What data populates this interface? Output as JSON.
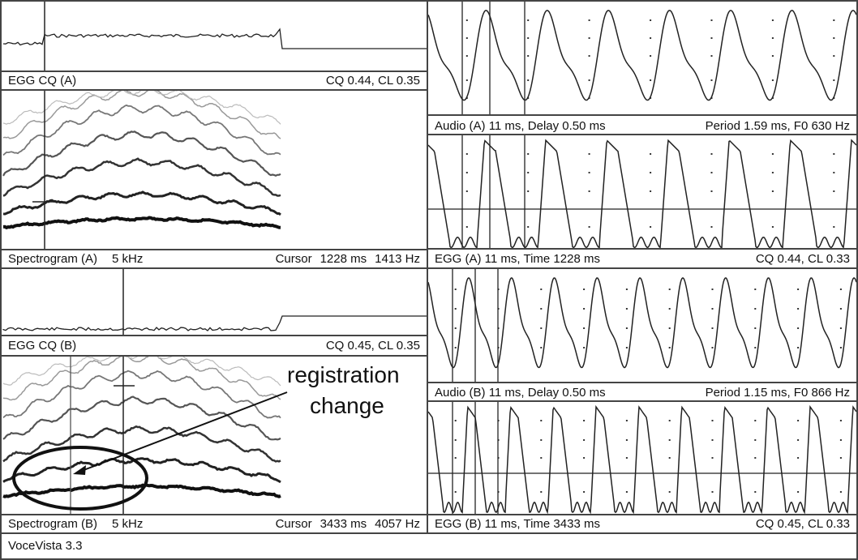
{
  "app": {
    "status": "VoceVista 3.3"
  },
  "panes": {
    "egg_cq_a": {
      "label": "EGG CQ (A)",
      "value": "CQ 0.44, CL 0.35"
    },
    "spectrogram_a": {
      "label": "Spectrogram (A)",
      "range": "5 kHz",
      "cursor_label": "Cursor",
      "cursor_time": "1228 ms",
      "cursor_freq": "1413 Hz"
    },
    "egg_cq_b": {
      "label": "EGG CQ (B)",
      "value": "CQ 0.45, CL 0.35"
    },
    "spectrogram_b": {
      "label": "Spectrogram (B)",
      "range": "5 kHz",
      "cursor_label": "Cursor",
      "cursor_time": "3433 ms",
      "cursor_freq": "4057 Hz"
    },
    "audio_a": {
      "label": "Audio (A) 11 ms, Delay 0.50 ms",
      "value": "Period 1.59 ms, F0 630 Hz"
    },
    "egg_a": {
      "label": "EGG (A) 11 ms, Time 1228 ms",
      "value": "CQ 0.44, CL 0.33"
    },
    "audio_b": {
      "label": "Audio (B) 11 ms, Delay 0.50 ms",
      "value": "Period 1.15 ms, F0 866 Hz"
    },
    "egg_b": {
      "label": "EGG (B) 11 ms, Time 3433 ms",
      "value": "CQ 0.45, CL 0.33"
    }
  },
  "annotation": {
    "line1": "registration",
    "line2": "change"
  },
  "waveforms": {
    "audio_a_cycles": 7,
    "egg_a_cycles": 7,
    "audio_b_cycles": 10,
    "egg_b_cycles": 10
  }
}
